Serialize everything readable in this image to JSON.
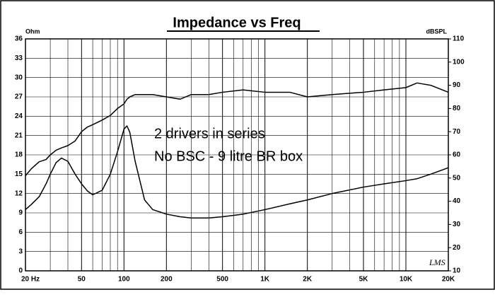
{
  "chart_data": {
    "type": "line",
    "title": "Impedance vs Freq",
    "y_label": "Ohm",
    "y2_label": "dBSPL",
    "annotations": [
      "2 drivers in series",
      "No BSC - 9 litre BR box"
    ],
    "logo": "LMS",
    "annotation_color": "#ff0000",
    "xscale": "log",
    "grid": true,
    "xlim": [
      20,
      20000
    ],
    "xticks": [
      {
        "value": 20,
        "label": "20 Hz"
      },
      50,
      100,
      200,
      500,
      {
        "value": 1000,
        "label": "1K"
      },
      {
        "value": 2000,
        "label": "2K"
      },
      {
        "value": 5000,
        "label": "5K"
      },
      {
        "value": 10000,
        "label": "10K"
      },
      {
        "value": 20000,
        "label": "20K"
      }
    ],
    "xminorticks": [
      30,
      40,
      60,
      70,
      80,
      90,
      300,
      400,
      600,
      700,
      800,
      900,
      3000,
      4000,
      6000,
      7000,
      8000,
      9000
    ],
    "ylim": [
      0,
      36
    ],
    "yticks": [
      0,
      3,
      6,
      9,
      12,
      15,
      18,
      21,
      24,
      27,
      30,
      33,
      36
    ],
    "y2lim": [
      10,
      110
    ],
    "y2ticks": [
      10,
      20,
      30,
      40,
      50,
      60,
      70,
      80,
      90,
      100,
      110
    ],
    "x": [
      20,
      22,
      25,
      28,
      30,
      33,
      36,
      40,
      45,
      50,
      55,
      60,
      70,
      80,
      90,
      100,
      105,
      110,
      120,
      140,
      160,
      200,
      250,
      300,
      400,
      500,
      700,
      1000,
      1500,
      2000,
      3000,
      5000,
      7000,
      10000,
      12000,
      15000,
      20000
    ],
    "series": [
      {
        "name": "Impedance",
        "color": "#000000",
        "axis": "y",
        "values": [
          9.5,
          10.3,
          11.5,
          13.5,
          15,
          16.8,
          17.5,
          17,
          15,
          13.5,
          12.4,
          11.8,
          12.5,
          15,
          18.5,
          22,
          22.5,
          21.5,
          17,
          11,
          9.5,
          8.8,
          8.4,
          8.2,
          8.2,
          8.4,
          8.8,
          9.5,
          10.4,
          11,
          12,
          13,
          13.5,
          14,
          14.3,
          15,
          16
        ]
      },
      {
        "name": "SPL",
        "color": "#000000",
        "axis": "y2",
        "values": [
          51,
          54,
          57,
          58,
          60,
          62,
          63,
          64,
          66,
          70,
          72,
          73,
          75,
          77,
          80,
          82,
          84,
          85,
          86,
          86,
          86,
          85,
          84,
          86,
          86,
          87,
          88,
          87,
          87,
          85,
          86,
          87,
          88,
          89,
          91,
          90,
          87
        ]
      }
    ]
  }
}
